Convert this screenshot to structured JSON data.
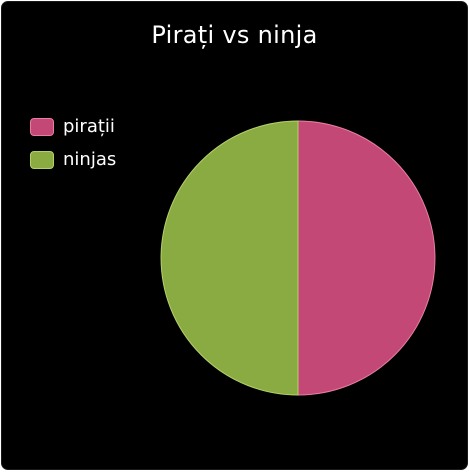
{
  "chart_data": {
    "type": "pie",
    "title": "Pirați vs ninja",
    "legend_position": "left",
    "slices": [
      {
        "label": "pirații",
        "value": 50,
        "color": "#c44875",
        "stroke": "#e87ea4"
      },
      {
        "label": "ninjas",
        "value": 50,
        "color": "#8aab42",
        "stroke": "#b5d06b"
      }
    ]
  }
}
